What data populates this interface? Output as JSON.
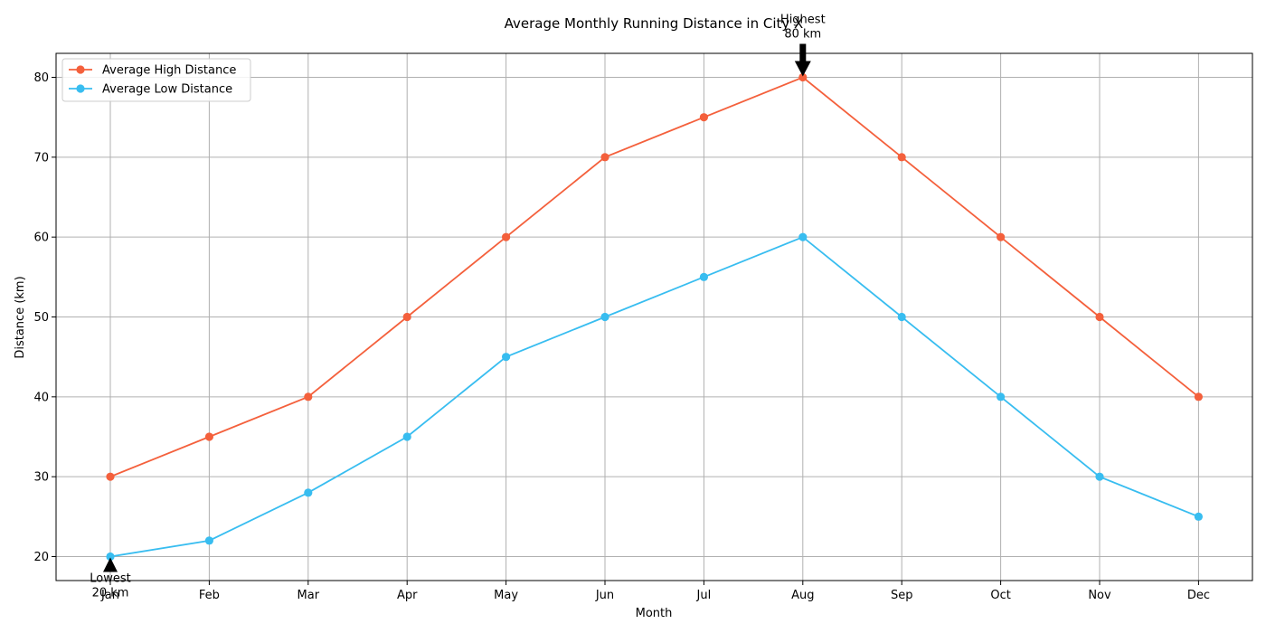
{
  "chart_data": {
    "type": "line",
    "title": "Average Monthly Running Distance in City X",
    "xlabel": "Month",
    "ylabel": "Distance (km)",
    "categories": [
      "Jan",
      "Feb",
      "Mar",
      "Apr",
      "May",
      "Jun",
      "Jul",
      "Aug",
      "Sep",
      "Oct",
      "Nov",
      "Dec"
    ],
    "ylim": [
      17,
      83
    ],
    "yticks": [
      20,
      30,
      40,
      50,
      60,
      70,
      80
    ],
    "grid": true,
    "legend_position": "top-left",
    "series": [
      {
        "name": "Average High Distance",
        "color": "#f4603c",
        "marker": "circle",
        "values": [
          30,
          35,
          40,
          50,
          60,
          70,
          75,
          80,
          70,
          60,
          50,
          40
        ]
      },
      {
        "name": "Average Low Distance",
        "color": "#38bdf0",
        "marker": "circle",
        "values": [
          20,
          22,
          28,
          35,
          45,
          50,
          55,
          60,
          50,
          40,
          30,
          25
        ]
      }
    ],
    "annotations": [
      {
        "id": "highest",
        "lines": [
          "Highest",
          "80 km"
        ],
        "x": "Aug",
        "y": 80,
        "arrow": "down",
        "color": "#000000"
      },
      {
        "id": "lowest",
        "lines": [
          "Lowest",
          "20 km"
        ],
        "x": "Jan",
        "y": 20,
        "arrow": "up",
        "color": "#000000"
      }
    ]
  }
}
